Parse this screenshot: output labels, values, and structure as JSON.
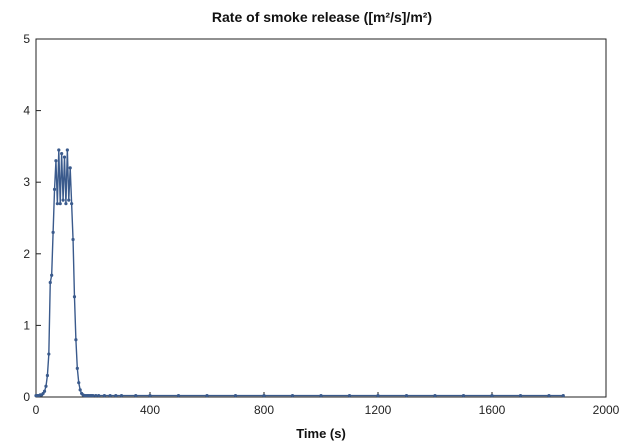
{
  "chart_data": {
    "type": "line",
    "title": "Rate of smoke release ([m²/s]/m²)",
    "xlabel": "Time (s)",
    "ylabel": "",
    "xlim": [
      0,
      2000
    ],
    "ylim": [
      0,
      5
    ],
    "x_ticks": [
      "0",
      "400",
      "800",
      "1200",
      "1600",
      "2000"
    ],
    "y_ticks": [
      "0",
      "1",
      "2",
      "3",
      "4",
      "5"
    ],
    "grid": false,
    "legend": "none",
    "series": [
      {
        "color": "#3a5a8c",
        "x": [
          0,
          5,
          10,
          15,
          20,
          25,
          30,
          35,
          40,
          45,
          50,
          55,
          60,
          65,
          70,
          75,
          80,
          85,
          90,
          95,
          100,
          105,
          110,
          115,
          120,
          125,
          130,
          135,
          140,
          145,
          150,
          155,
          160,
          165,
          170,
          175,
          180,
          185,
          190,
          195,
          200,
          210,
          220,
          240,
          260,
          280,
          300,
          350,
          400,
          500,
          600,
          700,
          800,
          900,
          1000,
          1100,
          1200,
          1300,
          1400,
          1500,
          1600,
          1700,
          1800,
          1850
        ],
        "y": [
          0.02,
          0.02,
          0.02,
          0.03,
          0.03,
          0.05,
          0.08,
          0.15,
          0.3,
          0.6,
          1.6,
          1.7,
          2.3,
          2.9,
          3.3,
          2.7,
          3.45,
          2.7,
          3.4,
          2.75,
          3.35,
          2.7,
          3.45,
          2.75,
          3.2,
          2.7,
          2.2,
          1.4,
          0.8,
          0.4,
          0.2,
          0.1,
          0.05,
          0.03,
          0.02,
          0.02,
          0.02,
          0.02,
          0.02,
          0.02,
          0.02,
          0.02,
          0.02,
          0.02,
          0.02,
          0.02,
          0.02,
          0.02,
          0.02,
          0.02,
          0.02,
          0.02,
          0.02,
          0.02,
          0.02,
          0.02,
          0.02,
          0.02,
          0.02,
          0.02,
          0.02,
          0.02,
          0.02,
          0.02
        ]
      }
    ]
  }
}
